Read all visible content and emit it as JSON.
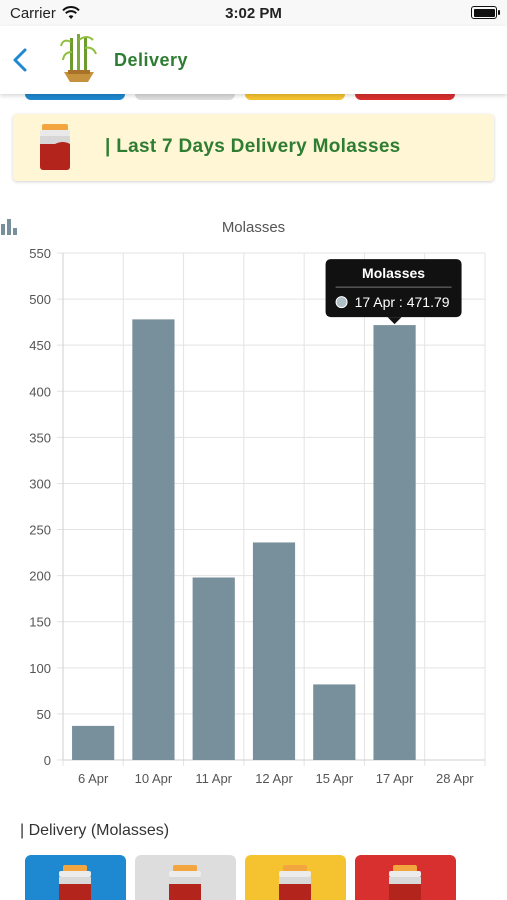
{
  "status_bar": {
    "carrier": "Carrier",
    "time": "3:02 PM",
    "icons": [
      "wifi-icon",
      "battery-icon"
    ]
  },
  "nav": {
    "title": "Delivery",
    "back_icon": "chevron-left-icon",
    "logo_icon": "sugarcane-logo-icon"
  },
  "banner": {
    "text": "| Last 7 Days Delivery Molasses",
    "icon": "molasses-jar-icon"
  },
  "colors": {
    "blue": "#1e88d0",
    "grey": "#dddddd",
    "yellow": "#f6c330",
    "red": "#d8302f",
    "bar": "#78909c",
    "green": "#2e7d32"
  },
  "chart_data": {
    "type": "bar",
    "title": "Molasses",
    "categories": [
      "6 Apr",
      "10 Apr",
      "11 Apr",
      "12 Apr",
      "15 Apr",
      "17 Apr",
      "28 Apr"
    ],
    "series": [
      {
        "name": "Molasses",
        "values": [
          37,
          478,
          198,
          236,
          82,
          471.79,
          0
        ]
      }
    ],
    "yticks": [
      0,
      50,
      100,
      150,
      200,
      250,
      300,
      350,
      400,
      450,
      500,
      550
    ],
    "ylim": [
      0,
      550
    ],
    "grid": true,
    "tooltip": {
      "title": "Molasses",
      "text": "17 Apr : 471.79",
      "category_index": 5
    }
  },
  "section": {
    "label": "| Delivery (Molasses)"
  },
  "cards": [
    {
      "name": "blue",
      "color": "#1e88d0"
    },
    {
      "name": "grey",
      "color": "#dddddd"
    },
    {
      "name": "yellow",
      "color": "#f6c330"
    },
    {
      "name": "red",
      "color": "#d8302f"
    }
  ]
}
